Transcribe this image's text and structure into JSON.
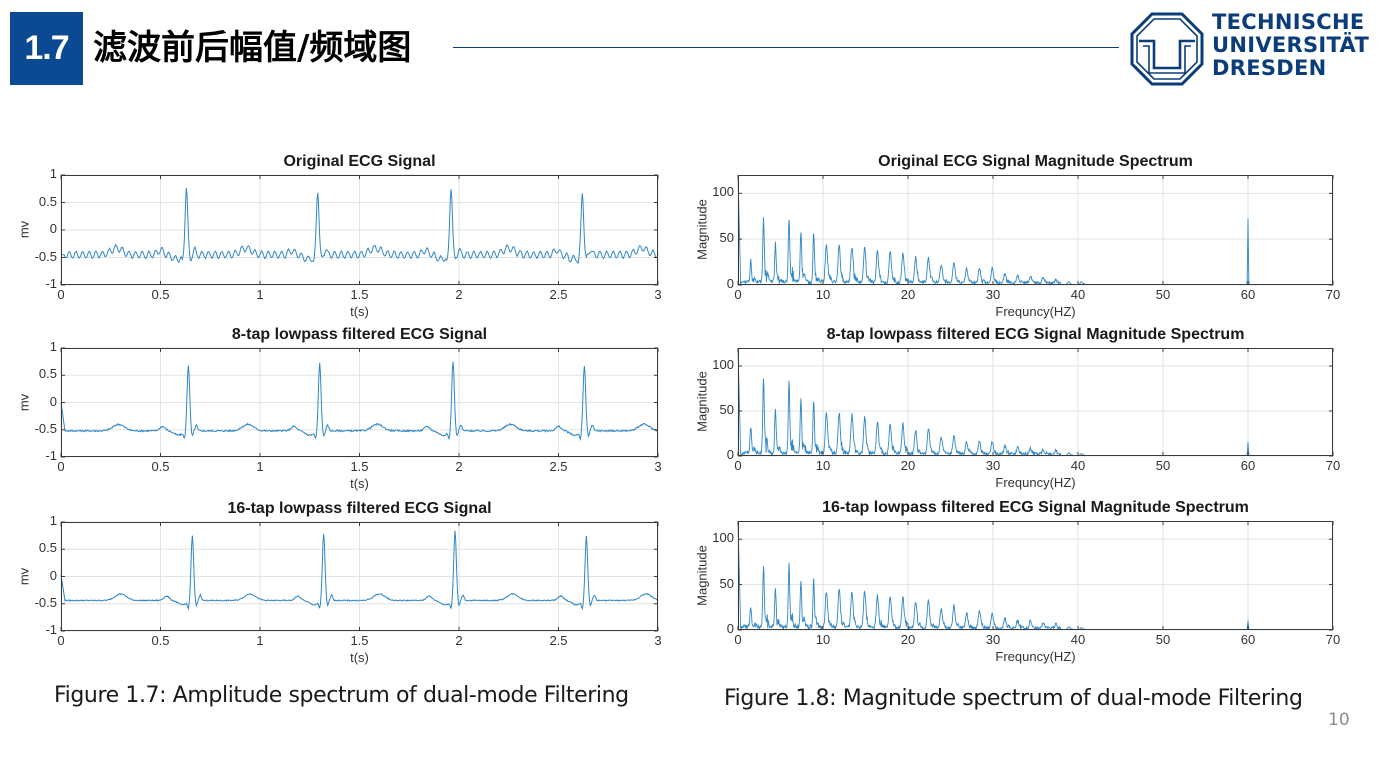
{
  "header": {
    "section_number": "1.7",
    "title": "滤波前后幅值/频域图",
    "badge_color": "#0b4a92",
    "rule_color": "#0b3d7a"
  },
  "logo": {
    "icon": "tu-dresden-octagon-logo-icon",
    "lines": [
      "TECHNISCHE",
      "UNIVERSITÄT",
      "DRESDEN"
    ],
    "color": "#0b3d7a"
  },
  "captions": {
    "left": "Figure 1.7: Amplitude spectrum of dual-mode Filtering",
    "right": "Figure 1.8: Magnitude spectrum of dual-mode Filtering"
  },
  "page_number": "10",
  "line_color": "#2f87c8",
  "chart_data": [
    {
      "type": "line",
      "title": "Original ECG Signal",
      "xlabel": "t(s)",
      "ylabel": "mv",
      "xlim": [
        0,
        3
      ],
      "ylim": [
        -1,
        1
      ],
      "xticks": [
        "0",
        "0.5",
        "1",
        "1.5",
        "2",
        "2.5",
        "3"
      ],
      "yticks": [
        "1",
        "0.5",
        "0",
        "-0.5",
        "-1"
      ],
      "grid": true,
      "baseline": -0.45,
      "noise_amp": 0.06,
      "r_peaks": [
        {
          "t": 0.63,
          "v": 0.8
        },
        {
          "t": 1.29,
          "v": 0.74
        },
        {
          "t": 1.96,
          "v": 0.81
        },
        {
          "t": 2.62,
          "v": 0.7
        }
      ],
      "t_waves": [
        0.28,
        0.93,
        1.58,
        2.25,
        2.92
      ],
      "start_value": -0.45
    },
    {
      "type": "line",
      "title": "8-tap lowpass filtered ECG Signal",
      "xlabel": "t(s)",
      "ylabel": "mv",
      "xlim": [
        0,
        3
      ],
      "ylim": [
        -1,
        1
      ],
      "xticks": [
        "0",
        "0.5",
        "1",
        "1.5",
        "2",
        "2.5",
        "3"
      ],
      "yticks": [
        "1",
        "0.5",
        "0",
        "-0.5",
        "-1"
      ],
      "grid": true,
      "baseline": -0.52,
      "noise_amp": 0.015,
      "r_peaks": [
        {
          "t": 0.64,
          "v": 0.69
        },
        {
          "t": 1.3,
          "v": 0.73
        },
        {
          "t": 1.97,
          "v": 0.76
        },
        {
          "t": 2.63,
          "v": 0.68
        }
      ],
      "t_waves": [
        0.29,
        0.94,
        1.59,
        2.26,
        2.93
      ],
      "start_value": 0.0
    },
    {
      "type": "line",
      "title": "16-tap lowpass filtered ECG Signal",
      "xlabel": "t(s)",
      "ylabel": "mv",
      "xlim": [
        0,
        3
      ],
      "ylim": [
        -1,
        1
      ],
      "xticks": [
        "0",
        "0.5",
        "1",
        "1.5",
        "2",
        "2.5",
        "3"
      ],
      "yticks": [
        "1",
        "0.5",
        "0",
        "-0.5",
        "-1"
      ],
      "grid": true,
      "baseline": -0.44,
      "noise_amp": 0.01,
      "r_peaks": [
        {
          "t": 0.66,
          "v": 0.75
        },
        {
          "t": 1.32,
          "v": 0.79
        },
        {
          "t": 1.98,
          "v": 0.84
        },
        {
          "t": 2.64,
          "v": 0.74
        }
      ],
      "t_waves": [
        0.3,
        0.95,
        1.6,
        2.27,
        2.94
      ],
      "start_value": 0.03
    },
    {
      "type": "line",
      "title": "Original ECG Signal Magnitude Spectrum",
      "xlabel": "Frequncy(HZ)",
      "ylabel": "Magnitude",
      "xlim": [
        0,
        70
      ],
      "ylim": [
        0,
        120
      ],
      "xticks": [
        "0",
        "10",
        "20",
        "30",
        "40",
        "50",
        "60",
        "70"
      ],
      "yticks": [
        "100",
        "50",
        "0"
      ],
      "grid": true,
      "dc": 120,
      "harmonics": [
        {
          "f": 1.5,
          "m": 24
        },
        {
          "f": 3.0,
          "m": 69
        },
        {
          "f": 4.4,
          "m": 42
        },
        {
          "f": 6.0,
          "m": 68
        },
        {
          "f": 7.4,
          "m": 53
        },
        {
          "f": 8.9,
          "m": 51
        },
        {
          "f": 10.4,
          "m": 41
        },
        {
          "f": 11.9,
          "m": 40
        },
        {
          "f": 13.4,
          "m": 39
        },
        {
          "f": 14.9,
          "m": 38
        },
        {
          "f": 16.4,
          "m": 34
        },
        {
          "f": 17.9,
          "m": 33
        },
        {
          "f": 19.4,
          "m": 31
        },
        {
          "f": 20.9,
          "m": 27
        },
        {
          "f": 22.4,
          "m": 27
        },
        {
          "f": 23.9,
          "m": 20
        },
        {
          "f": 25.4,
          "m": 21
        },
        {
          "f": 26.9,
          "m": 15
        },
        {
          "f": 28.4,
          "m": 16
        },
        {
          "f": 29.9,
          "m": 16
        },
        {
          "f": 31.4,
          "m": 10
        },
        {
          "f": 32.9,
          "m": 8
        },
        {
          "f": 34.4,
          "m": 7
        },
        {
          "f": 35.9,
          "m": 6
        },
        {
          "f": 37.4,
          "m": 4
        },
        {
          "f": 38.9,
          "m": 3
        },
        {
          "f": 40.4,
          "m": 3
        }
      ],
      "powerline": {
        "f": 60,
        "m": 72
      }
    },
    {
      "type": "line",
      "title": "8-tap lowpass filtered ECG Signal Magnitude Spectrum",
      "xlabel": "Frequncy(HZ)",
      "ylabel": "Magnitude",
      "xlim": [
        0,
        70
      ],
      "ylim": [
        0,
        120
      ],
      "xticks": [
        "0",
        "10",
        "20",
        "30",
        "40",
        "50",
        "60",
        "70"
      ],
      "yticks": [
        "100",
        "50",
        "0"
      ],
      "grid": true,
      "dc": 120,
      "harmonics": [
        {
          "f": 1.5,
          "m": 28
        },
        {
          "f": 3.0,
          "m": 82
        },
        {
          "f": 4.4,
          "m": 48
        },
        {
          "f": 6.0,
          "m": 79
        },
        {
          "f": 7.4,
          "m": 59
        },
        {
          "f": 8.9,
          "m": 57
        },
        {
          "f": 10.4,
          "m": 45
        },
        {
          "f": 11.9,
          "m": 44
        },
        {
          "f": 13.4,
          "m": 42
        },
        {
          "f": 14.9,
          "m": 39
        },
        {
          "f": 16.4,
          "m": 35
        },
        {
          "f": 17.9,
          "m": 32
        },
        {
          "f": 19.4,
          "m": 32
        },
        {
          "f": 20.9,
          "m": 26
        },
        {
          "f": 22.4,
          "m": 27
        },
        {
          "f": 23.9,
          "m": 18
        },
        {
          "f": 25.4,
          "m": 20
        },
        {
          "f": 26.9,
          "m": 13
        },
        {
          "f": 28.4,
          "m": 14
        },
        {
          "f": 29.9,
          "m": 13
        },
        {
          "f": 31.4,
          "m": 9
        },
        {
          "f": 32.9,
          "m": 7
        },
        {
          "f": 34.4,
          "m": 6
        },
        {
          "f": 35.9,
          "m": 5
        },
        {
          "f": 37.4,
          "m": 4
        },
        {
          "f": 38.9,
          "m": 3
        },
        {
          "f": 40.4,
          "m": 2
        }
      ],
      "powerline": {
        "f": 60,
        "m": 15
      }
    },
    {
      "type": "line",
      "title": "16-tap lowpass filtered ECG Signal Magnitude Spectrum",
      "xlabel": "Frequncy(HZ)",
      "ylabel": "Magnitude",
      "xlim": [
        0,
        70
      ],
      "ylim": [
        0,
        120
      ],
      "xticks": [
        "0",
        "10",
        "20",
        "30",
        "40",
        "50",
        "60",
        "70"
      ],
      "yticks": [
        "100",
        "50",
        "0"
      ],
      "grid": true,
      "dc": 120,
      "harmonics": [
        {
          "f": 1.5,
          "m": 23
        },
        {
          "f": 3.0,
          "m": 68
        },
        {
          "f": 4.4,
          "m": 40
        },
        {
          "f": 6.0,
          "m": 68
        },
        {
          "f": 7.4,
          "m": 50
        },
        {
          "f": 8.9,
          "m": 51
        },
        {
          "f": 10.4,
          "m": 39
        },
        {
          "f": 11.9,
          "m": 41
        },
        {
          "f": 13.4,
          "m": 38
        },
        {
          "f": 14.9,
          "m": 39
        },
        {
          "f": 16.4,
          "m": 34
        },
        {
          "f": 17.9,
          "m": 33
        },
        {
          "f": 19.4,
          "m": 33
        },
        {
          "f": 20.9,
          "m": 28
        },
        {
          "f": 22.4,
          "m": 30
        },
        {
          "f": 23.9,
          "m": 20
        },
        {
          "f": 25.4,
          "m": 24
        },
        {
          "f": 26.9,
          "m": 16
        },
        {
          "f": 28.4,
          "m": 19
        },
        {
          "f": 29.9,
          "m": 15
        },
        {
          "f": 31.4,
          "m": 11
        },
        {
          "f": 32.9,
          "m": 8
        },
        {
          "f": 34.4,
          "m": 8
        },
        {
          "f": 35.9,
          "m": 5
        },
        {
          "f": 37.4,
          "m": 4
        },
        {
          "f": 38.9,
          "m": 3
        },
        {
          "f": 40.4,
          "m": 2
        }
      ],
      "powerline": {
        "f": 60,
        "m": 10
      }
    }
  ]
}
